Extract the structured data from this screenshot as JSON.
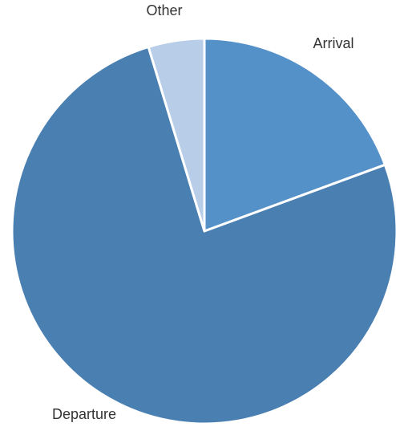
{
  "chart_data": {
    "type": "pie",
    "title": "",
    "categories": [
      "Arrival",
      "Departure",
      "Other"
    ],
    "values": [
      19.4,
      75.9,
      4.7
    ],
    "unit": "%",
    "start_angle_deg": 0,
    "direction": "clockwise",
    "colors": [
      "#5591C9",
      "#4A7FB2",
      "#B7CDE8"
    ],
    "legend": "none",
    "labels_position": "outside"
  }
}
